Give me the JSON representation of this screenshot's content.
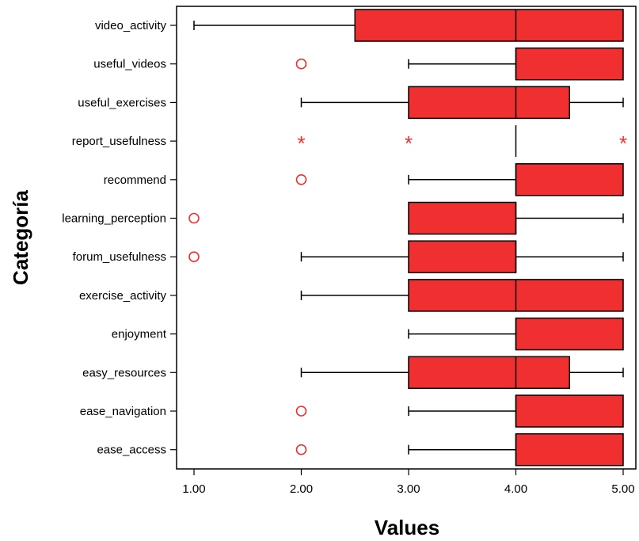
{
  "chart_data": {
    "type": "boxplot",
    "orientation": "horizontal",
    "xlabel": "Values",
    "ylabel": "Categoría",
    "xlim": [
      1,
      5
    ],
    "xticks": [
      "1.00",
      "2.00",
      "3.00",
      "4.00",
      "5.00"
    ],
    "xtick_values": [
      1,
      2,
      3,
      4,
      5
    ],
    "grid": false,
    "box_color": "#f03030",
    "outlier_color": "#f03030",
    "categories": [
      "video_activity",
      "useful_videos",
      "useful_exercises",
      "report_usefulness",
      "recommend",
      "learning_perception",
      "forum_usefulness",
      "exercise_activity",
      "enjoyment",
      "easy_resources",
      "ease_navigation",
      "ease_access"
    ],
    "boxes": [
      {
        "category": "video_activity",
        "whisker_low": 1,
        "q1": 2.5,
        "median": 4,
        "q3": 5,
        "whisker_high": 5,
        "outliers": [],
        "extremes": []
      },
      {
        "category": "useful_videos",
        "whisker_low": 3,
        "q1": 4,
        "median": 4,
        "q3": 5,
        "whisker_high": 5,
        "outliers": [
          2
        ],
        "extremes": []
      },
      {
        "category": "useful_exercises",
        "whisker_low": 2,
        "q1": 3,
        "median": 4,
        "q3": 4.5,
        "whisker_high": 5,
        "outliers": [],
        "extremes": []
      },
      {
        "category": "report_usefulness",
        "whisker_low": 4,
        "q1": 4,
        "median": 4,
        "q3": 4,
        "whisker_high": 4,
        "outliers": [],
        "extremes": [
          2,
          3,
          5
        ]
      },
      {
        "category": "recommend",
        "whisker_low": 3,
        "q1": 4,
        "median": 4,
        "q3": 5,
        "whisker_high": 5,
        "outliers": [
          2
        ],
        "extremes": []
      },
      {
        "category": "learning_perception",
        "whisker_low": 3,
        "q1": 3,
        "median": 4,
        "q3": 4,
        "whisker_high": 5,
        "outliers": [
          1
        ],
        "extremes": []
      },
      {
        "category": "forum_usefulness",
        "whisker_low": 2,
        "q1": 3,
        "median": 4,
        "q3": 4,
        "whisker_high": 5,
        "outliers": [
          1
        ],
        "extremes": []
      },
      {
        "category": "exercise_activity",
        "whisker_low": 2,
        "q1": 3,
        "median": 4,
        "q3": 5,
        "whisker_high": 5,
        "outliers": [],
        "extremes": []
      },
      {
        "category": "enjoyment",
        "whisker_low": 3,
        "q1": 4,
        "median": 4,
        "q3": 5,
        "whisker_high": 5,
        "outliers": [],
        "extremes": []
      },
      {
        "category": "easy_resources",
        "whisker_low": 2,
        "q1": 3,
        "median": 4,
        "q3": 4.5,
        "whisker_high": 5,
        "outliers": [],
        "extremes": []
      },
      {
        "category": "ease_navigation",
        "whisker_low": 3,
        "q1": 4,
        "median": 4,
        "q3": 5,
        "whisker_high": 5,
        "outliers": [
          2
        ],
        "extremes": []
      },
      {
        "category": "ease_access",
        "whisker_low": 3,
        "q1": 4,
        "median": 4,
        "q3": 5,
        "whisker_high": 5,
        "outliers": [
          2
        ],
        "extremes": []
      }
    ]
  }
}
